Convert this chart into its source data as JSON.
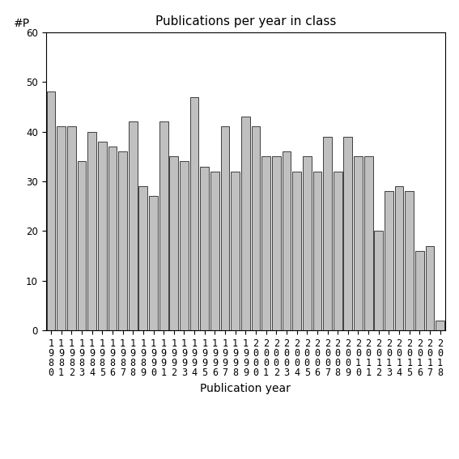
{
  "title": "Publications per year in class",
  "xlabel": "Publication year",
  "ylabel": "#P",
  "years": [
    1980,
    1981,
    1982,
    1983,
    1984,
    1985,
    1986,
    1987,
    1988,
    1989,
    1990,
    1991,
    1992,
    1993,
    1994,
    1995,
    1996,
    1997,
    1998,
    1999,
    2000,
    2001,
    2002,
    2003,
    2004,
    2005,
    2006,
    2007,
    2008,
    2009,
    2010,
    2011,
    2012,
    2013,
    2014,
    2015,
    2016,
    2017,
    2018
  ],
  "values": [
    48,
    41,
    41,
    34,
    40,
    38,
    37,
    36,
    42,
    29,
    27,
    42,
    35,
    34,
    47,
    33,
    32,
    41,
    32,
    43,
    41,
    35,
    35,
    36,
    32,
    35,
    32,
    39,
    32,
    39,
    35,
    35,
    20,
    28,
    29,
    28,
    16,
    17,
    2
  ],
  "bar_color": "#c0c0c0",
  "bar_edge_color": "#000000",
  "ylim": [
    0,
    60
  ],
  "yticks": [
    0,
    10,
    20,
    30,
    40,
    50,
    60
  ],
  "background_color": "#ffffff",
  "title_fontsize": 11,
  "label_fontsize": 10,
  "tick_fontsize": 8.5
}
